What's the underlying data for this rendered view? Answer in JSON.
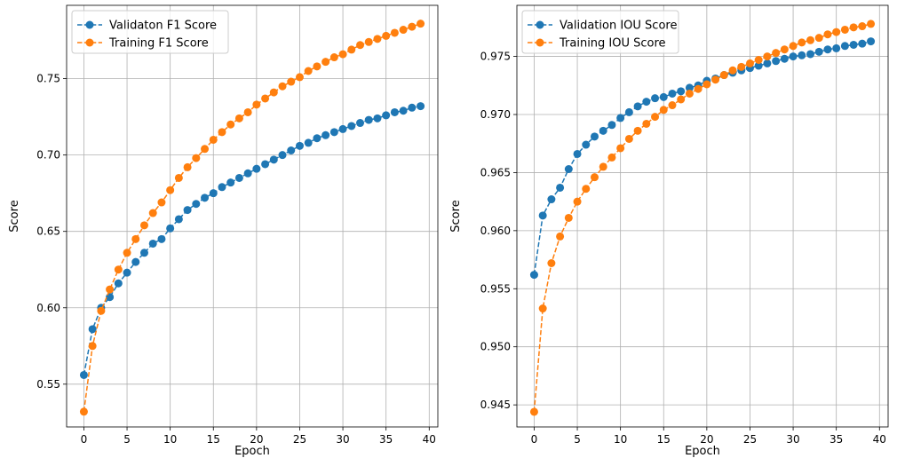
{
  "chart_data": [
    {
      "type": "line",
      "title": "",
      "xlabel": "Epoch",
      "ylabel": "Score",
      "xlim": [
        -2,
        41
      ],
      "ylim": [
        0.522,
        0.798
      ],
      "xticks": [
        "0",
        "5",
        "10",
        "15",
        "20",
        "25",
        "30",
        "35",
        "40"
      ],
      "yticks": [
        "0.55",
        "0.60",
        "0.65",
        "0.70",
        "0.75"
      ],
      "grid": true,
      "legend_position": "top-left",
      "x": [
        0,
        1,
        2,
        3,
        4,
        5,
        6,
        7,
        8,
        9,
        10,
        11,
        12,
        13,
        14,
        15,
        16,
        17,
        18,
        19,
        20,
        21,
        22,
        23,
        24,
        25,
        26,
        27,
        28,
        29,
        30,
        31,
        32,
        33,
        34,
        35,
        36,
        37,
        38,
        39
      ],
      "series": [
        {
          "name": "Validaton F1 Score",
          "color": "#1f77b4",
          "values": [
            0.556,
            0.586,
            0.6,
            0.607,
            0.616,
            0.623,
            0.63,
            0.636,
            0.642,
            0.645,
            0.652,
            0.658,
            0.664,
            0.668,
            0.672,
            0.675,
            0.679,
            0.682,
            0.685,
            0.688,
            0.691,
            0.694,
            0.697,
            0.7,
            0.703,
            0.706,
            0.708,
            0.711,
            0.713,
            0.715,
            0.717,
            0.719,
            0.721,
            0.723,
            0.724,
            0.726,
            0.728,
            0.729,
            0.731,
            0.732
          ]
        },
        {
          "name": "Training F1 Score",
          "color": "#ff7f0e",
          "values": [
            0.532,
            0.575,
            0.598,
            0.612,
            0.625,
            0.636,
            0.645,
            0.654,
            0.662,
            0.669,
            0.677,
            0.685,
            0.692,
            0.698,
            0.704,
            0.71,
            0.715,
            0.72,
            0.724,
            0.728,
            0.733,
            0.737,
            0.741,
            0.745,
            0.748,
            0.751,
            0.755,
            0.758,
            0.761,
            0.764,
            0.766,
            0.769,
            0.772,
            0.774,
            0.776,
            0.778,
            0.78,
            0.782,
            0.784,
            0.786
          ]
        }
      ]
    },
    {
      "type": "line",
      "title": "",
      "xlabel": "Epoch",
      "ylabel": "Score",
      "xlim": [
        -2,
        41
      ],
      "ylim": [
        0.9431,
        0.9794
      ],
      "xticks": [
        "0",
        "5",
        "10",
        "15",
        "20",
        "25",
        "30",
        "35",
        "40"
      ],
      "yticks": [
        "0.945",
        "0.950",
        "0.955",
        "0.960",
        "0.965",
        "0.970",
        "0.975"
      ],
      "grid": true,
      "legend_position": "top-left",
      "x": [
        0,
        1,
        2,
        3,
        4,
        5,
        6,
        7,
        8,
        9,
        10,
        11,
        12,
        13,
        14,
        15,
        16,
        17,
        18,
        19,
        20,
        21,
        22,
        23,
        24,
        25,
        26,
        27,
        28,
        29,
        30,
        31,
        32,
        33,
        34,
        35,
        36,
        37,
        38,
        39
      ],
      "series": [
        {
          "name": "Validation IOU Score",
          "color": "#1f77b4",
          "values": [
            0.9562,
            0.9613,
            0.9627,
            0.9637,
            0.9653,
            0.9666,
            0.9674,
            0.9681,
            0.9686,
            0.9691,
            0.9697,
            0.9702,
            0.9707,
            0.9711,
            0.9714,
            0.9715,
            0.9718,
            0.972,
            0.9723,
            0.9725,
            0.9729,
            0.9731,
            0.9734,
            0.9736,
            0.9738,
            0.974,
            0.9742,
            0.9744,
            0.9746,
            0.9748,
            0.975,
            0.9751,
            0.9752,
            0.9754,
            0.9756,
            0.9757,
            0.9759,
            0.976,
            0.9761,
            0.9763
          ]
        },
        {
          "name": "Training IOU Score",
          "color": "#ff7f0e",
          "values": [
            0.9444,
            0.9533,
            0.9572,
            0.9595,
            0.9611,
            0.9625,
            0.9636,
            0.9646,
            0.9655,
            0.9663,
            0.9671,
            0.9679,
            0.9686,
            0.9692,
            0.9698,
            0.9704,
            0.9708,
            0.9713,
            0.9718,
            0.9722,
            0.9726,
            0.973,
            0.9734,
            0.9738,
            0.9741,
            0.9744,
            0.9747,
            0.975,
            0.9753,
            0.9756,
            0.9759,
            0.9762,
            0.9764,
            0.9766,
            0.9769,
            0.9771,
            0.9773,
            0.9775,
            0.9776,
            0.9778
          ]
        }
      ]
    }
  ]
}
